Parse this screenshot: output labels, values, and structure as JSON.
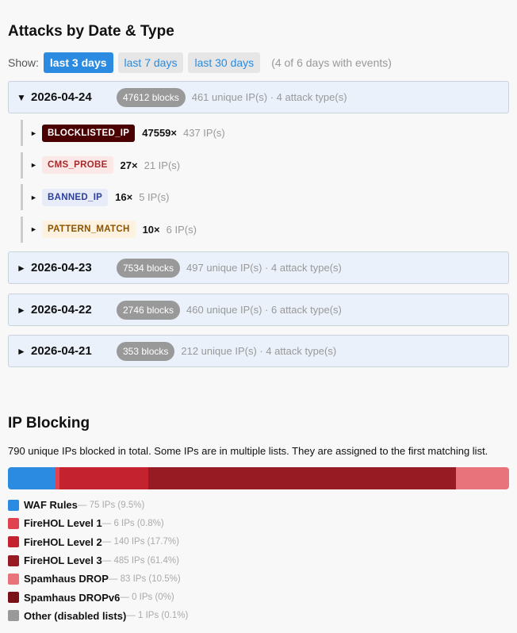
{
  "attacks": {
    "title": "Attacks by Date & Type",
    "show_label": "Show:",
    "filters": [
      {
        "label": "last 3 days",
        "active": true
      },
      {
        "label": "last 7 days",
        "active": false
      },
      {
        "label": "last 30 days",
        "active": false
      }
    ],
    "note": "(4 of 6 days with events)",
    "days": [
      {
        "date": "2026-04-24",
        "expanded": true,
        "blocks": "47612 blocks",
        "meta": "461 unique IP(s) · 4 attack type(s)",
        "types": [
          {
            "name": "BLOCKLISTED_IP",
            "count": "47559×",
            "ips": "437 IP(s)",
            "bg": "#4a0000",
            "fg": "#ffffff"
          },
          {
            "name": "CMS_PROBE",
            "count": "27×",
            "ips": "21 IP(s)",
            "bg": "#fde8e8",
            "fg": "#a52a2a"
          },
          {
            "name": "BANNED_IP",
            "count": "16×",
            "ips": "5 IP(s)",
            "bg": "#e8ecf8",
            "fg": "#2c3e9c"
          },
          {
            "name": "PATTERN_MATCH",
            "count": "10×",
            "ips": "6 IP(s)",
            "bg": "#fdf2e0",
            "fg": "#8a5300"
          }
        ]
      },
      {
        "date": "2026-04-23",
        "expanded": false,
        "blocks": "7534 blocks",
        "meta": "497 unique IP(s) · 4 attack type(s)"
      },
      {
        "date": "2026-04-22",
        "expanded": false,
        "blocks": "2746 blocks",
        "meta": "460 unique IP(s) · 6 attack type(s)"
      },
      {
        "date": "2026-04-21",
        "expanded": false,
        "blocks": "353 blocks",
        "meta": "212 unique IP(s) · 4 attack type(s)"
      }
    ]
  },
  "ip_blocking": {
    "title": "IP Blocking",
    "description": "790 unique IPs blocked in total. Some IPs are in multiple lists. They are assigned to the first matching list.",
    "lists": [
      {
        "name": "WAF Rules",
        "detail": "— 75 IPs (9.5%)",
        "ips": 75,
        "percent": 9.5,
        "color": "#2a8be0"
      },
      {
        "name": "FireHOL Level 1",
        "detail": "— 6 IPs (0.8%)",
        "ips": 6,
        "percent": 0.8,
        "color": "#e0424f"
      },
      {
        "name": "FireHOL Level 2",
        "detail": "— 140 IPs (17.7%)",
        "ips": 140,
        "percent": 17.7,
        "color": "#c4222e"
      },
      {
        "name": "FireHOL Level 3",
        "detail": "— 485 IPs (61.4%)",
        "ips": 485,
        "percent": 61.4,
        "color": "#971b23"
      },
      {
        "name": "Spamhaus DROP",
        "detail": "— 83 IPs (10.5%)",
        "ips": 83,
        "percent": 10.5,
        "color": "#e8737b"
      },
      {
        "name": "Spamhaus DROPv6",
        "detail": "— 0 IPs (0%)",
        "ips": 0,
        "percent": 0,
        "color": "#7a1219"
      },
      {
        "name": "Other (disabled lists)",
        "detail": "— 1 IPs (0.1%)",
        "ips": 1,
        "percent": 0.1,
        "color": "#999999"
      }
    ]
  }
}
